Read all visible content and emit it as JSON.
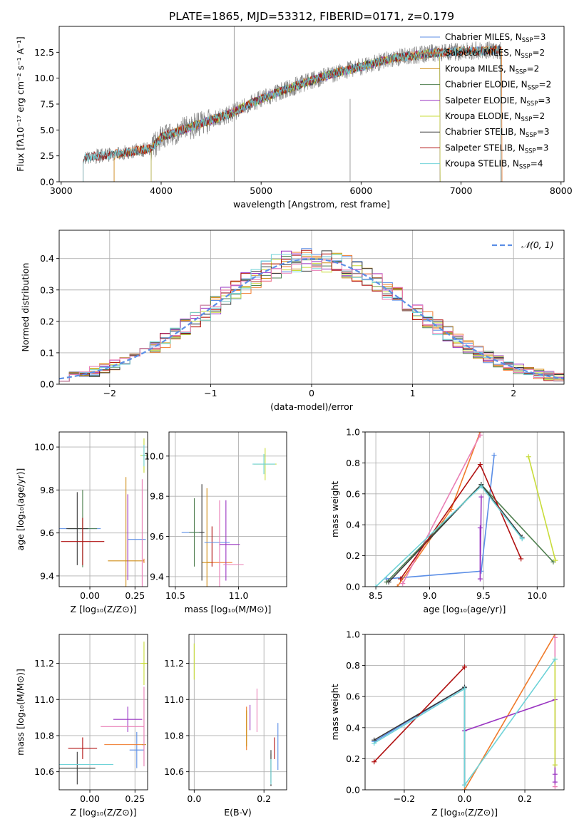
{
  "figure": {
    "title": "PLATE=1865, MJD=53312, FIBERID=0171, z=0.179"
  },
  "colors": {
    "chab_miles": "#5b8ee6",
    "salp_miles": "#f07a2a",
    "krou_miles": "#d08f1a",
    "chab_elodie": "#4f7f4f",
    "salp_elodie": "#9a35c2",
    "krou_elodie": "#c8dc3a",
    "chab_stelib": "#3a3a3a",
    "salp_stelib": "#b01010",
    "krou_stelib": "#6fd3d8",
    "pink": "#ea7fb6",
    "grid": "#b0b0b0",
    "spectrum": "#888888"
  },
  "chart_data": [
    {
      "id": "spectrum",
      "type": "line",
      "xlabel": "wavelength [Angstrom, rest frame]",
      "ylabel": "Flux [fλ10⁻¹⁷ erg cm⁻² s⁻¹ A⁻¹]",
      "xlim": [
        2980,
        8030
      ],
      "ylim": [
        0,
        15
      ],
      "xticks": [
        3000,
        4000,
        5000,
        6000,
        7000,
        8000
      ],
      "yticks": [
        0.0,
        2.5,
        5.0,
        7.5,
        10.0,
        12.5
      ],
      "ytick_labels": [
        "0.0",
        "2.5",
        "5.0",
        "7.5",
        "10.0",
        "12.5"
      ],
      "grid": false,
      "legend_position": "top-right",
      "series": [
        {
          "name": "Chabrier MILES, N",
          "sub": "SSP",
          "suffix": "=3",
          "color_key": "chab_miles",
          "x_start": 3530,
          "x_end": 7400
        },
        {
          "name": "Salpeter MILES, N",
          "sub": "SSP",
          "suffix": "=2",
          "color_key": "salp_miles",
          "x_start": 3530,
          "x_end": 7410
        },
        {
          "name": "Kroupa MILES, N",
          "sub": "SSP",
          "suffix": "=2",
          "color_key": "krou_miles",
          "x_start": 3530,
          "x_end": 7400
        },
        {
          "name": "Chabrier ELODIE, N",
          "sub": "SSP",
          "suffix": "=2",
          "color_key": "chab_elodie",
          "x_start": 3900,
          "x_end": 6790
        },
        {
          "name": "Salpeter ELODIE, N",
          "sub": "SSP",
          "suffix": "=3",
          "color_key": "salp_elodie",
          "x_start": 3900,
          "x_end": 6790
        },
        {
          "name": "Kroupa ELODIE, N",
          "sub": "SSP",
          "suffix": "=2",
          "color_key": "krou_elodie",
          "x_start": 3900,
          "x_end": 6790
        },
        {
          "name": "Chabrier STELIB, N",
          "sub": "SSP",
          "suffix": "=3",
          "color_key": "chab_stelib",
          "x_start": 3220,
          "x_end": 7400
        },
        {
          "name": "Salpeter STELIB, N",
          "sub": "SSP",
          "suffix": "=3",
          "color_key": "salp_stelib",
          "x_start": 3220,
          "x_end": 7400
        },
        {
          "name": "Kroupa STELIB, N",
          "sub": "SSP",
          "suffix": "=4",
          "color_key": "krou_stelib",
          "x_start": 3220,
          "x_end": 7400
        }
      ],
      "continuum": {
        "x": [
          3220,
          3500,
          3900,
          4000,
          4300,
          4700,
          5000,
          5300,
          5700,
          6000,
          6300,
          6700,
          7000,
          7400
        ],
        "y": [
          2.3,
          2.6,
          3.2,
          4.3,
          5.3,
          6.6,
          8.0,
          9.1,
          10.4,
          11.1,
          11.9,
          12.4,
          12.6,
          12.7
        ]
      },
      "spikes": [
        {
          "x": 4730,
          "y": 15.0
        },
        {
          "x": 5890,
          "y": 8.0
        }
      ]
    },
    {
      "id": "residuals",
      "type": "bar",
      "xlabel": "(data-model)/error",
      "ylabel": "Normed distribution",
      "xlim": [
        -2.5,
        2.5
      ],
      "ylim": [
        0,
        0.49
      ],
      "xticks": [
        -2,
        -1,
        0,
        1,
        2
      ],
      "xtick_labels": [
        "−2",
        "−1",
        "0",
        "1",
        "2"
      ],
      "yticks": [
        0.0,
        0.1,
        0.2,
        0.3,
        0.4
      ],
      "ytick_labels": [
        "0.0",
        "0.1",
        "0.2",
        "0.3",
        "0.4"
      ],
      "grid": true,
      "legend_position": "top-right",
      "legend_label": "𝒩(0, 1)",
      "gaussian": {
        "mu": 0,
        "sigma": 1,
        "color_key": "chab_miles"
      },
      "histogram_bin_width": 0.1,
      "histogram_series": [
        "chab_miles",
        "salp_miles",
        "krou_miles",
        "chab_elodie",
        "salp_elodie",
        "krou_elodie",
        "chab_stelib",
        "salp_stelib",
        "krou_stelib",
        "pink"
      ]
    },
    {
      "id": "age-vs-Z",
      "type": "scatter",
      "xlabel": "Z [log₁₀(Z/Z⊙)]",
      "ylabel": "age  [log₁₀(age/yr)]",
      "xlim": [
        -0.17,
        0.32
      ],
      "ylim": [
        9.35,
        10.07
      ],
      "xticks": [
        0.0,
        0.25
      ],
      "xtick_labels": [
        "0.00",
        "0.25"
      ],
      "yticks": [
        9.4,
        9.6,
        9.8,
        10.0
      ],
      "ytick_labels": [
        "9.4",
        "9.6",
        "9.8",
        "10.0"
      ],
      "grid": true,
      "points": [
        {
          "x": -0.13,
          "y": 9.62,
          "xerr": 0.19,
          "yerr": 0.0,
          "color_key": "chab_miles"
        },
        {
          "x": 0.3,
          "y": 9.47,
          "xerr": 0.0,
          "yerr": 0.01,
          "color_key": "salp_miles"
        },
        {
          "x": 0.2,
          "y": 9.47,
          "xerr": 0.1,
          "yerr": 0.39,
          "color_key": "krou_miles"
        },
        {
          "x": -0.04,
          "y": 9.62,
          "xerr": 0.08,
          "yerr": 0.18,
          "color_key": "chab_elodie"
        },
        {
          "x": 0.21,
          "y": 9.58,
          "xerr": 0.0,
          "yerr": 0.2,
          "color_key": "salp_elodie"
        },
        {
          "x": 0.3,
          "y": 9.96,
          "xerr": 0.02,
          "yerr": 0.08,
          "color_key": "krou_elodie"
        },
        {
          "x": -0.07,
          "y": 9.62,
          "xerr": 0.06,
          "yerr": 0.17,
          "color_key": "chab_stelib"
        },
        {
          "x": -0.04,
          "y": 9.56,
          "xerr": 0.12,
          "yerr": 0.11,
          "color_key": "salp_stelib"
        },
        {
          "x": 0.3,
          "y": 9.96,
          "xerr": 0.01,
          "yerr": 0.05,
          "color_key": "krou_stelib"
        },
        {
          "x": 0.26,
          "y": 9.57,
          "xerr": 0.05,
          "yerr": 0.0,
          "color_key": "chab_miles"
        },
        {
          "x": 0.29,
          "y": 9.47,
          "xerr": 0.0,
          "yerr": 0.38,
          "color_key": "pink"
        }
      ]
    },
    {
      "id": "age-vs-mass",
      "type": "scatter",
      "xlabel": "mass [log₁₀(M/M⊙)]",
      "ylabel": "",
      "xlim": [
        10.45,
        11.38
      ],
      "ylim": [
        9.35,
        10.12
      ],
      "xticks": [
        10.5,
        11.0
      ],
      "xtick_labels": [
        "10.5",
        "11.0"
      ],
      "yticks": [
        9.4,
        9.6,
        9.8,
        10.0
      ],
      "ytick_labels": [
        "9.4",
        "9.6",
        "9.8",
        "10.0"
      ],
      "grid": true,
      "points": [
        {
          "x": 10.63,
          "y": 9.62,
          "xerr": 0.08,
          "yerr": 0.0,
          "color_key": "chab_miles"
        },
        {
          "x": 10.85,
          "y": 9.47,
          "xerr": 0.1,
          "yerr": 0.0,
          "color_key": "salp_miles"
        },
        {
          "x": 10.75,
          "y": 9.47,
          "xerr": 0.04,
          "yerr": 0.37,
          "color_key": "krou_miles"
        },
        {
          "x": 10.65,
          "y": 9.62,
          "xerr": 0.04,
          "yerr": 0.17,
          "color_key": "chab_elodie"
        },
        {
          "x": 10.9,
          "y": 9.58,
          "xerr": 0.0,
          "yerr": 0.2,
          "color_key": "salp_elodie"
        },
        {
          "x": 11.21,
          "y": 9.96,
          "xerr": 0.09,
          "yerr": 0.08,
          "color_key": "krou_elodie"
        },
        {
          "x": 10.71,
          "y": 9.62,
          "xerr": 0.02,
          "yerr": 0.24,
          "color_key": "chab_stelib"
        },
        {
          "x": 10.79,
          "y": 9.55,
          "xerr": 0.0,
          "yerr": 0.1,
          "color_key": "salp_stelib"
        },
        {
          "x": 11.2,
          "y": 9.96,
          "xerr": 0.09,
          "yerr": 0.05,
          "color_key": "krou_stelib"
        },
        {
          "x": 10.83,
          "y": 9.57,
          "xerr": 0.1,
          "yerr": 0.0,
          "color_key": "chab_miles"
        },
        {
          "x": 10.85,
          "y": 9.5,
          "xerr": 0.0,
          "yerr": 0.28,
          "color_key": "pink"
        },
        {
          "x": 10.96,
          "y": 9.46,
          "xerr": 0.08,
          "yerr": 0.0,
          "color_key": "pink"
        },
        {
          "x": 10.93,
          "y": 9.56,
          "xerr": 0.08,
          "yerr": 0.0,
          "color_key": "salp_elodie"
        }
      ]
    },
    {
      "id": "weight-vs-age",
      "type": "line",
      "xlabel": "age  [log₁₀(age/yr)]",
      "ylabel": "mass weight",
      "xlim": [
        8.4,
        10.25
      ],
      "ylim": [
        0,
        1
      ],
      "xticks": [
        8.5,
        9.0,
        9.5,
        10.0
      ],
      "xtick_labels": [
        "8.5",
        "9.0",
        "9.5",
        "10.0"
      ],
      "yticks": [
        0.0,
        0.2,
        0.4,
        0.6,
        0.8,
        1.0
      ],
      "ytick_labels": [
        "0.0",
        "0.2",
        "0.4",
        "0.6",
        "0.8",
        "1.0"
      ],
      "grid": true,
      "series": [
        {
          "color_key": "chab_miles",
          "x": [
            8.6,
            9.48,
            9.6
          ],
          "y": [
            0.05,
            0.1,
            0.85
          ]
        },
        {
          "color_key": "salp_miles",
          "x": [
            8.7,
            9.2,
            9.47
          ],
          "y": [
            0.0,
            0.5,
            1.0
          ]
        },
        {
          "color_key": "pink",
          "x": [
            8.75,
            9.47
          ],
          "y": [
            0.02,
            0.98
          ]
        },
        {
          "color_key": "chab_elodie",
          "x": [
            8.6,
            9.48,
            10.15
          ],
          "y": [
            0.03,
            0.66,
            0.16
          ]
        },
        {
          "color_key": "salp_elodie",
          "x": [
            9.47,
            9.47,
            9.48
          ],
          "y": [
            0.38,
            0.05,
            0.58
          ]
        },
        {
          "color_key": "krou_elodie",
          "x": [
            9.92,
            10.17
          ],
          "y": [
            0.84,
            0.17
          ]
        },
        {
          "color_key": "chab_stelib",
          "x": [
            8.62,
            9.48,
            9.86
          ],
          "y": [
            0.03,
            0.66,
            0.32
          ]
        },
        {
          "color_key": "salp_stelib",
          "x": [
            8.73,
            9.47,
            9.85
          ],
          "y": [
            0.05,
            0.79,
            0.18
          ]
        },
        {
          "color_key": "krou_stelib",
          "x": [
            8.5,
            9.48,
            9.86
          ],
          "y": [
            0.0,
            0.65,
            0.31
          ]
        }
      ]
    },
    {
      "id": "mass-vs-Z",
      "type": "scatter",
      "xlabel": "Z [log₁₀(Z/Z⊙)]",
      "ylabel": "mass [log₁₀(M/M⊙)]",
      "xlim": [
        -0.17,
        0.32
      ],
      "ylim": [
        10.5,
        11.36
      ],
      "xticks": [
        0.0,
        0.25
      ],
      "xtick_labels": [
        "0.00",
        "0.25"
      ],
      "yticks": [
        10.6,
        10.8,
        11.0,
        11.2
      ],
      "ytick_labels": [
        "10.6",
        "10.8",
        "11.0",
        "11.2"
      ],
      "grid": true,
      "points": [
        {
          "x": 0.26,
          "y": 10.72,
          "xerr": 0.04,
          "yerr": 0.1,
          "color_key": "chab_miles"
        },
        {
          "x": 0.19,
          "y": 10.75,
          "xerr": 0.11,
          "yerr": 0.0,
          "color_key": "salp_miles"
        },
        {
          "x": 0.3,
          "y": 10.75,
          "xerr": 0.0,
          "yerr": 0.0,
          "color_key": "krou_miles"
        },
        {
          "x": -0.07,
          "y": 10.62,
          "xerr": 0.1,
          "yerr": 0.0,
          "color_key": "chab_elodie"
        },
        {
          "x": 0.21,
          "y": 10.89,
          "xerr": 0.08,
          "yerr": 0.07,
          "color_key": "salp_elodie"
        },
        {
          "x": 0.3,
          "y": 11.2,
          "xerr": 0.02,
          "yerr": 0.12,
          "color_key": "krou_elodie"
        },
        {
          "x": -0.07,
          "y": 10.62,
          "xerr": 0.1,
          "yerr": 0.09,
          "color_key": "chab_stelib"
        },
        {
          "x": -0.04,
          "y": 10.73,
          "xerr": 0.08,
          "yerr": 0.06,
          "color_key": "salp_stelib"
        },
        {
          "x": -0.02,
          "y": 10.64,
          "xerr": 0.15,
          "yerr": 0.0,
          "color_key": "krou_stelib"
        },
        {
          "x": 0.3,
          "y": 10.85,
          "xerr": 0.0,
          "yerr": 0.22,
          "color_key": "pink"
        },
        {
          "x": 0.18,
          "y": 10.85,
          "xerr": 0.12,
          "yerr": 0.0,
          "color_key": "pink"
        },
        {
          "x": 0.3,
          "y": 11.2,
          "xerr": 0.0,
          "yerr": 0.0,
          "color_key": "krou_elodie"
        }
      ]
    },
    {
      "id": "mass-vs-EBV",
      "type": "scatter",
      "xlabel": "E(B-V)",
      "ylabel": "",
      "xlim": [
        -0.015,
        0.265
      ],
      "ylim": [
        10.5,
        11.36
      ],
      "xticks": [
        0.0,
        0.2
      ],
      "xtick_labels": [
        "0.0",
        "0.2"
      ],
      "yticks": [
        10.6,
        10.8,
        11.0,
        11.2
      ],
      "ytick_labels": [
        "10.6",
        "10.8",
        "11.0",
        "11.2"
      ],
      "grid": true,
      "points": [
        {
          "x": 0.24,
          "y": 10.74,
          "xerr": 0.0,
          "yerr": 0.13,
          "color_key": "chab_miles"
        },
        {
          "x": 0.15,
          "y": 10.84,
          "xerr": 0.0,
          "yerr": 0.12,
          "color_key": "salp_miles"
        },
        {
          "x": 0.15,
          "y": 10.84,
          "xerr": 0.0,
          "yerr": 0.1,
          "color_key": "krou_miles"
        },
        {
          "x": 0.22,
          "y": 10.62,
          "xerr": 0.0,
          "yerr": 0.08,
          "color_key": "chab_elodie"
        },
        {
          "x": 0.16,
          "y": 10.9,
          "xerr": 0.0,
          "yerr": 0.07,
          "color_key": "salp_elodie"
        },
        {
          "x": 0.0,
          "y": 11.21,
          "xerr": 0.0,
          "yerr": 0.1,
          "color_key": "krou_elodie"
        },
        {
          "x": 0.22,
          "y": 10.62,
          "xerr": 0.0,
          "yerr": 0.1,
          "color_key": "chab_stelib"
        },
        {
          "x": 0.23,
          "y": 10.73,
          "xerr": 0.0,
          "yerr": 0.06,
          "color_key": "salp_stelib"
        },
        {
          "x": 0.22,
          "y": 10.6,
          "xerr": 0.0,
          "yerr": 0.07,
          "color_key": "krou_stelib"
        },
        {
          "x": 0.18,
          "y": 10.94,
          "xerr": 0.0,
          "yerr": 0.12,
          "color_key": "pink"
        }
      ]
    },
    {
      "id": "weight-vs-Z",
      "type": "line",
      "xlabel": "Z [log₁₀(Z/Z⊙)]",
      "ylabel": "mass weight",
      "xlim": [
        -0.33,
        0.33
      ],
      "ylim": [
        0,
        1
      ],
      "xticks": [
        -0.2,
        0.0,
        0.2
      ],
      "xtick_labels": [
        "−0.2",
        "0.0",
        "0.2"
      ],
      "yticks": [
        0.0,
        0.2,
        0.4,
        0.6,
        0.8,
        1.0
      ],
      "ytick_labels": [
        "0.0",
        "0.2",
        "0.4",
        "0.6",
        "0.8",
        "1.0"
      ],
      "grid": true,
      "series": [
        {
          "color_key": "chab_miles",
          "x": [
            -0.3,
            0.0,
            0.0
          ],
          "y": [
            0.31,
            0.66,
            0.03
          ]
        },
        {
          "color_key": "salp_miles",
          "x": [
            0.0,
            0.3
          ],
          "y": [
            0.0,
            1.0
          ]
        },
        {
          "color_key": "pink",
          "x": [
            0.3,
            0.3
          ],
          "y": [
            0.98,
            0.02
          ]
        },
        {
          "color_key": "salp_elodie",
          "x": [
            0.0,
            0.3,
            0.3,
            0.3
          ],
          "y": [
            0.38,
            0.58,
            0.1,
            0.05
          ]
        },
        {
          "color_key": "krou_elodie",
          "x": [
            0.3,
            0.3
          ],
          "y": [
            0.84,
            0.16
          ]
        },
        {
          "color_key": "chab_stelib",
          "x": [
            -0.3,
            0.0,
            0.0
          ],
          "y": [
            0.32,
            0.66,
            0.03
          ]
        },
        {
          "color_key": "salp_stelib",
          "x": [
            -0.3,
            0.0,
            0.0
          ],
          "y": [
            0.18,
            0.79,
            0.79
          ]
        },
        {
          "color_key": "krou_stelib",
          "x": [
            -0.3,
            0.0,
            0.0,
            0.3
          ],
          "y": [
            0.3,
            0.65,
            0.03,
            0.84
          ]
        }
      ]
    }
  ]
}
